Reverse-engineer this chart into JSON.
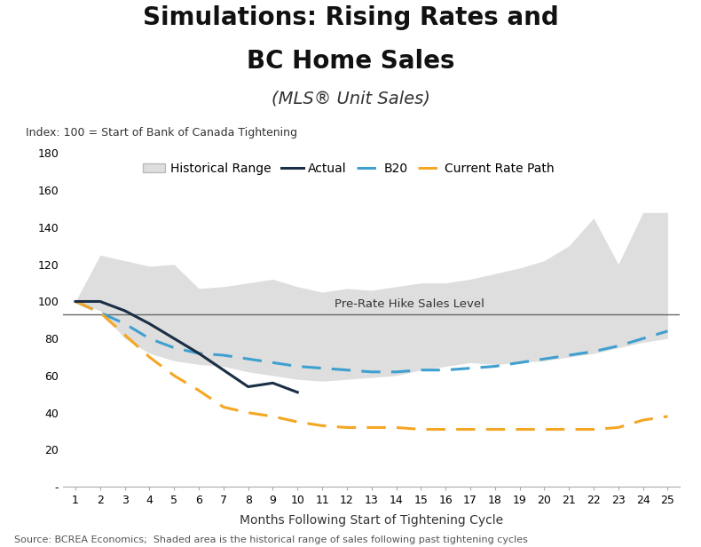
{
  "title_line1": "Simulations: Rising Rates and",
  "title_line2": "BC Home Sales",
  "subtitle": "(MLS® Unit Sales)",
  "index_label": "Index: 100 = Start of Bank of Canada Tightening",
  "xlabel": "Months Following Start of Tightening Cycle",
  "source_text": "Source: BCREA Economics;  Shaded area is the historical range of sales following past tightening cycles",
  "pre_rate_label": "Pre-Rate Hike Sales Level",
  "pre_rate_y": 93,
  "ylim_min": 0,
  "ylim_max": 180,
  "yticks": [
    0,
    20,
    40,
    60,
    80,
    100,
    120,
    140,
    160,
    180
  ],
  "ytick_labels": [
    "-",
    "20",
    "40",
    "60",
    "80",
    "100",
    "120",
    "140",
    "160",
    "180"
  ],
  "xlim_min": 1,
  "xlim_max": 25,
  "xticks": [
    1,
    2,
    3,
    4,
    5,
    6,
    7,
    8,
    9,
    10,
    11,
    12,
    13,
    14,
    15,
    16,
    17,
    18,
    19,
    20,
    21,
    22,
    23,
    24,
    25
  ],
  "months": [
    1,
    2,
    3,
    4,
    5,
    6,
    7,
    8,
    9,
    10,
    11,
    12,
    13,
    14,
    15,
    16,
    17,
    18,
    19,
    20,
    21,
    22,
    23,
    24,
    25
  ],
  "hist_upper": [
    100,
    125,
    122,
    119,
    120,
    107,
    108,
    110,
    112,
    108,
    105,
    107,
    106,
    108,
    110,
    110,
    112,
    115,
    118,
    122,
    130,
    145,
    120,
    148,
    148
  ],
  "hist_lower": [
    100,
    95,
    80,
    72,
    68,
    66,
    65,
    62,
    60,
    58,
    57,
    58,
    59,
    60,
    63,
    65,
    67,
    66,
    67,
    68,
    70,
    72,
    75,
    78,
    80
  ],
  "actual": [
    100,
    100,
    95,
    88,
    80,
    72,
    63,
    54,
    56,
    51,
    null,
    null,
    null,
    null,
    null,
    null,
    null,
    null,
    null,
    null,
    null,
    null,
    null,
    null,
    null
  ],
  "b20": [
    100,
    94,
    88,
    80,
    75,
    72,
    71,
    69,
    67,
    65,
    64,
    63,
    62,
    62,
    63,
    63,
    64,
    65,
    67,
    69,
    71,
    73,
    76,
    80,
    84
  ],
  "current_rate": [
    100,
    94,
    82,
    70,
    60,
    52,
    43,
    40,
    38,
    35,
    33,
    32,
    32,
    32,
    31,
    31,
    31,
    31,
    31,
    31,
    31,
    31,
    32,
    36,
    38
  ],
  "actual_color": "#1a2e45",
  "b20_color": "#3fa0d0",
  "current_rate_color": "#f5a623",
  "hist_range_color": "#d3d3d3",
  "hist_range_alpha": 0.75,
  "pre_rate_line_color": "#666666",
  "background_color": "#ffffff",
  "title_fontsize": 20,
  "subtitle_fontsize": 14,
  "legend_fontsize": 10,
  "axis_label_fontsize": 10,
  "tick_fontsize": 9,
  "index_label_fontsize": 9,
  "source_fontsize": 8
}
